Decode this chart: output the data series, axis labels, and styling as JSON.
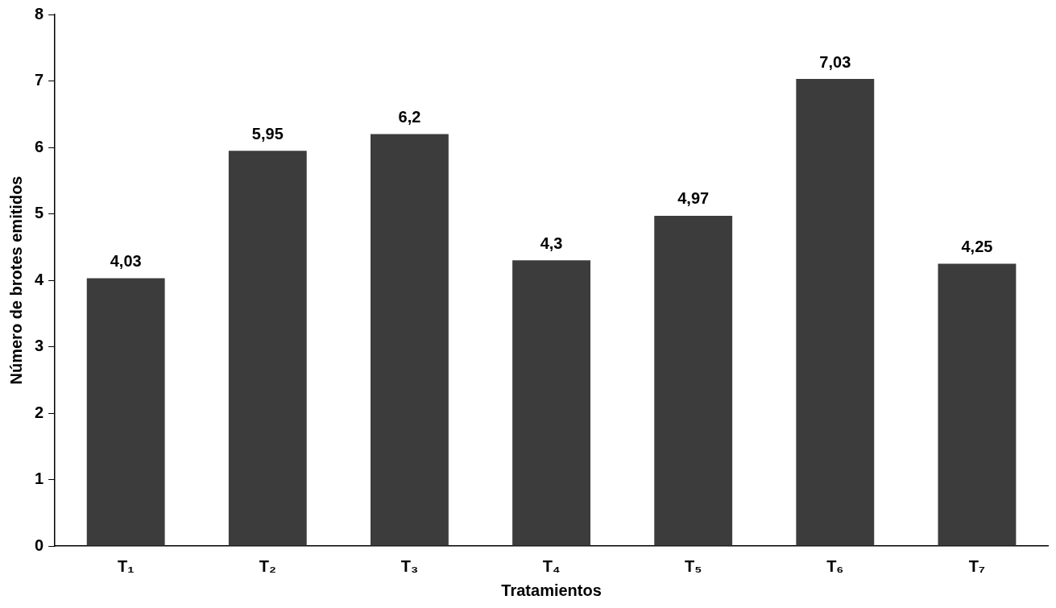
{
  "chart_data": {
    "type": "bar",
    "categories": [
      "T₁",
      "T₂",
      "T₃",
      "T₄",
      "T₅",
      "T₆",
      "T₇"
    ],
    "values": [
      4.03,
      5.95,
      6.2,
      4.3,
      4.97,
      7.03,
      4.25
    ],
    "value_labels": [
      "4,03",
      "5,95",
      "6,2",
      "4,3",
      "4,97",
      "7,03",
      "4,25"
    ],
    "color": "#3c3c3c",
    "xlabel": "Tratamientos",
    "ylabel": "Número de brotes emitidos",
    "ylim": [
      0,
      8
    ],
    "yticks": [
      0,
      1,
      2,
      3,
      4,
      5,
      6,
      7,
      8
    ],
    "grid": false,
    "legend": false
  }
}
